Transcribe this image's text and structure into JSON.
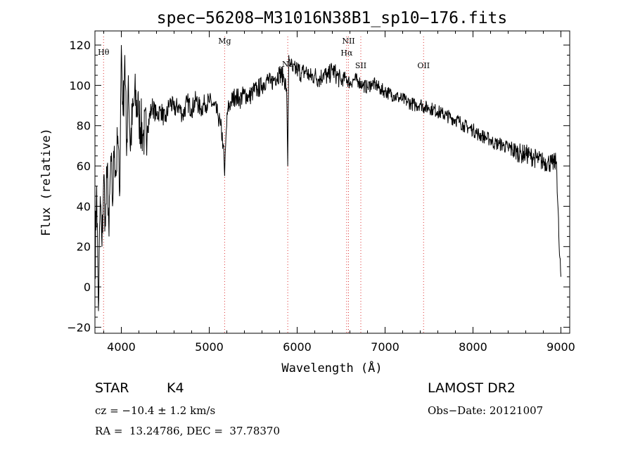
{
  "chart_data": {
    "type": "line",
    "title": "spec−56208−M31016N38B1_sp10−176.fits",
    "xlabel": "Wavelength (Å)",
    "ylabel": "Flux (relative)",
    "xlim": [
      3700,
      9100
    ],
    "ylim": [
      -23,
      127
    ],
    "x_ticks": [
      4000,
      5000,
      6000,
      7000,
      8000,
      9000
    ],
    "y_ticks": [
      -20,
      0,
      20,
      40,
      60,
      80,
      100,
      120
    ],
    "grid": false,
    "lines": [
      {
        "label": "Hθ",
        "wavelength": 3798
      },
      {
        "label": "Mg",
        "wavelength": 5175
      },
      {
        "label": "Na",
        "wavelength": 5893
      },
      {
        "label": "NII",
        "wavelength": 6584
      },
      {
        "label": "Hα",
        "wavelength": 6563
      },
      {
        "label": "SII",
        "wavelength": 6724
      },
      {
        "label": "OII",
        "wavelength": 7438
      }
    ],
    "series": [
      {
        "x": [
          3700,
          3720,
          3740,
          3760,
          3780,
          3800,
          3820,
          3840,
          3860,
          3880,
          3900,
          3920,
          3940,
          3960,
          3980,
          4000,
          4020,
          4040,
          4060,
          4080,
          4100,
          4150,
          4200,
          4250,
          4300,
          4350,
          4400,
          4450,
          4500,
          4550,
          4600,
          4650,
          4700,
          4750,
          4800,
          4850,
          4900,
          4950,
          5000,
          5050,
          5100,
          5130,
          5160,
          5175,
          5190,
          5210,
          5250,
          5300,
          5350,
          5400,
          5450,
          5500,
          5550,
          5600,
          5650,
          5700,
          5750,
          5800,
          5850,
          5880,
          5893,
          5905,
          5930,
          5950,
          6000,
          6050,
          6100,
          6150,
          6200,
          6250,
          6300,
          6350,
          6400,
          6450,
          6500,
          6550,
          6600,
          6650,
          6700,
          6750,
          6800,
          6850,
          6900,
          6950,
          7000,
          7050,
          7100,
          7150,
          7200,
          7250,
          7300,
          7350,
          7400,
          7450,
          7500,
          7550,
          7600,
          7650,
          7700,
          7750,
          7800,
          7850,
          7900,
          7950,
          8000,
          8050,
          8100,
          8150,
          8200,
          8250,
          8300,
          8350,
          8400,
          8450,
          8500,
          8550,
          8600,
          8650,
          8700,
          8750,
          8800,
          8850,
          8900,
          8950,
          8980,
          9000
        ],
        "y": [
          10,
          50,
          -12,
          45,
          20,
          55,
          30,
          60,
          25,
          65,
          40,
          70,
          55,
          75,
          45,
          120,
          85,
          115,
          65,
          105,
          70,
          95,
          85,
          75,
          80,
          90,
          85,
          88,
          82,
          92,
          88,
          90,
          85,
          92,
          88,
          93,
          88,
          91,
          92,
          90,
          85,
          80,
          70,
          55,
          75,
          88,
          92,
          95,
          93,
          96,
          94,
          97,
          98,
          100,
          103,
          101,
          104,
          106,
          104,
          98,
          60,
          115,
          110,
          107,
          108,
          106,
          107,
          104,
          105,
          103,
          106,
          104,
          108,
          105,
          102,
          104,
          101,
          103,
          102,
          100,
          99,
          101,
          100,
          98,
          97,
          96,
          95,
          94,
          93,
          92,
          91,
          90,
          91,
          89,
          89,
          88,
          87,
          86,
          85,
          84,
          83,
          82,
          80,
          79,
          78,
          76,
          75,
          74,
          73,
          71,
          71,
          70,
          69,
          68,
          67,
          66,
          66,
          65,
          64,
          63,
          62,
          62,
          61,
          62,
          20,
          5
        ]
      }
    ]
  },
  "info": {
    "object_class": "STAR",
    "subclass": "K4",
    "survey": "LAMOST DR2",
    "cz": "cz = −10.4 ± 1.2 km/s",
    "obs_date": "Obs−Date: 20121007",
    "coords": "RA =  13.24786, DEC =  37.78370"
  }
}
